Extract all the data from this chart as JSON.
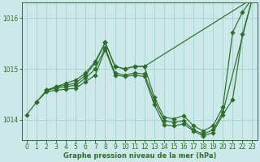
{
  "xlabel": "Graphe pression niveau de la mer (hPa)",
  "bg_color": "#cce8e8",
  "grid_color": "#aad4d4",
  "line_color": "#2d6e2d",
  "ylim": [
    1013.6,
    1016.3
  ],
  "xlim": [
    -0.5,
    23.5
  ],
  "yticks": [
    1014,
    1015,
    1016
  ],
  "xticks": [
    0,
    1,
    2,
    3,
    4,
    5,
    6,
    7,
    8,
    9,
    10,
    11,
    12,
    13,
    14,
    15,
    16,
    17,
    18,
    19,
    20,
    21,
    22,
    23
  ],
  "series": [
    {
      "x": [
        0,
        1,
        2,
        3,
        4,
        5,
        6,
        7,
        8,
        9,
        10,
        11,
        12,
        13,
        14,
        15,
        16,
        17,
        18,
        19,
        20,
        21,
        22,
        23
      ],
      "y": [
        1014.1,
        1014.35,
        1014.58,
        1014.65,
        1014.68,
        1014.72,
        1014.88,
        1015.12,
        1015.52,
        1015.05,
        1015.0,
        1015.05,
        1015.05,
        1014.45,
        1014.05,
        1014.02,
        1014.08,
        1013.88,
        1013.78,
        1013.88,
        1014.25,
        1015.72,
        1016.12,
        1016.38
      ]
    },
    {
      "x": [
        2,
        3,
        4,
        5,
        6,
        7,
        8,
        9,
        10,
        11,
        12,
        13,
        14,
        15,
        16,
        17,
        18,
        19,
        20,
        23
      ],
      "y": [
        1014.58,
        1014.62,
        1014.65,
        1014.68,
        1014.82,
        1015.0,
        1015.42,
        1014.92,
        1014.88,
        1014.92,
        1014.9,
        1014.38,
        1013.98,
        1013.95,
        1013.98,
        1013.8,
        1013.72,
        1013.8,
        1014.15,
        1016.38
      ]
    },
    {
      "x": [
        2,
        3,
        4,
        5,
        6,
        7,
        8,
        9,
        10,
        11,
        12,
        23
      ],
      "y": [
        1014.58,
        1014.65,
        1014.72,
        1014.78,
        1014.92,
        1015.15,
        1015.52,
        1015.05,
        1015.0,
        1015.05,
        1015.05,
        1016.38
      ]
    },
    {
      "x": [
        1,
        2,
        3,
        4,
        5,
        6,
        7,
        8,
        9,
        10,
        11,
        12,
        13,
        14,
        15,
        16,
        17,
        18,
        19,
        20,
        21,
        22,
        23
      ],
      "y": [
        1014.35,
        1014.55,
        1014.58,
        1014.6,
        1014.62,
        1014.75,
        1014.88,
        1015.38,
        1014.88,
        1014.85,
        1014.88,
        1014.85,
        1014.3,
        1013.9,
        1013.88,
        1013.92,
        1013.78,
        1013.68,
        1013.75,
        1014.1,
        1014.4,
        1015.68,
        1016.38
      ]
    }
  ]
}
